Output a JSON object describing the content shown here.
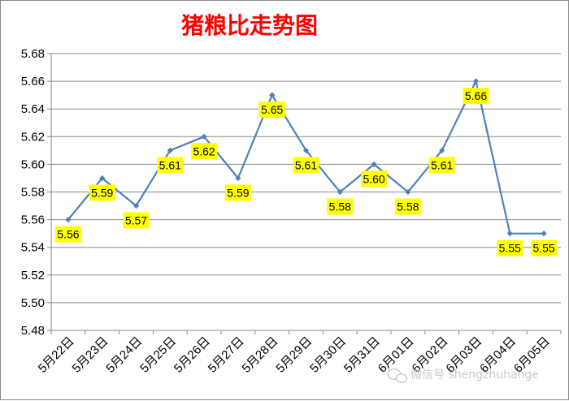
{
  "chart_data": {
    "type": "line",
    "title": "猪粮比走势图",
    "categories": [
      "5月22日",
      "5月23日",
      "5月24日",
      "5月25日",
      "5月26日",
      "5月27日",
      "5月28日",
      "5月29日",
      "5月30日",
      "5月31日",
      "6月01日",
      "6月02日",
      "6月03日",
      "6月04日",
      "6月05日"
    ],
    "values": [
      5.56,
      5.59,
      5.57,
      5.61,
      5.62,
      5.59,
      5.65,
      5.61,
      5.58,
      5.6,
      5.58,
      5.61,
      5.66,
      5.55,
      5.55
    ],
    "data_labels": [
      "5.56",
      "5.59",
      "5.57",
      "5.61",
      "5.62",
      "5.59",
      "5.65",
      "5.61",
      "5.58",
      "5.60",
      "5.58",
      "5.61",
      "5.66",
      "5.55",
      "5.55"
    ],
    "yticks": [
      "5.48",
      "5.50",
      "5.52",
      "5.54",
      "5.56",
      "5.58",
      "5.60",
      "5.62",
      "5.64",
      "5.66",
      "5.68"
    ],
    "ylim": [
      5.48,
      5.68
    ],
    "grid": true,
    "colors": {
      "line": "#4f81bd",
      "label_bg": "#ffff00",
      "title": "#ff0000",
      "grid": "#8a8a8a"
    }
  },
  "watermark": "微信号 shengzhuhange"
}
